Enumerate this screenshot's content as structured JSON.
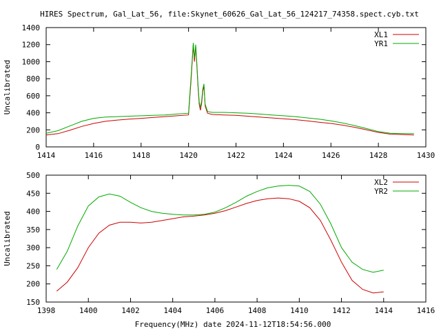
{
  "figure_title": "HIRES Spectrum, Gal_Lat_56, file:Skynet_60626_Gal_Lat_56_124217_74358.spect.cyb.txt",
  "xlabel_bottom": "Frequency(MHz) date 2024-11-12T18:54:56.000",
  "chart_data": [
    {
      "type": "line",
      "title": "",
      "xlabel": "",
      "ylabel": "Uncalibrated",
      "xlim": [
        1414,
        1430
      ],
      "ylim": [
        0,
        1400
      ],
      "xticks": [
        1414,
        1416,
        1418,
        1420,
        1422,
        1424,
        1426,
        1428,
        1430
      ],
      "yticks": [
        0,
        200,
        400,
        600,
        800,
        1000,
        1200,
        1400
      ],
      "legend_position": "top-right",
      "series": [
        {
          "name": "XL1",
          "color": "#cc0000",
          "x": [
            1414.0,
            1414.5,
            1415.0,
            1415.5,
            1416.0,
            1416.5,
            1417.0,
            1417.5,
            1418.0,
            1418.5,
            1419.0,
            1419.5,
            1420.0,
            1420.1,
            1420.2,
            1420.25,
            1420.3,
            1420.35,
            1420.4,
            1420.45,
            1420.5,
            1420.55,
            1420.6,
            1420.65,
            1420.7,
            1420.8,
            1421.0,
            1421.5,
            1422.0,
            1422.5,
            1423.0,
            1423.5,
            1424.0,
            1424.5,
            1425.0,
            1425.5,
            1426.0,
            1426.5,
            1427.0,
            1427.5,
            1428.0,
            1428.5,
            1429.0,
            1429.5
          ],
          "values": [
            140,
            155,
            195,
            240,
            275,
            300,
            315,
            325,
            335,
            345,
            355,
            365,
            375,
            760,
            1200,
            1000,
            1180,
            950,
            700,
            500,
            430,
            510,
            650,
            720,
            480,
            395,
            380,
            375,
            370,
            360,
            350,
            340,
            330,
            320,
            305,
            290,
            275,
            255,
            230,
            200,
            170,
            150,
            145,
            140
          ]
        },
        {
          "name": "YR1",
          "color": "#00aa00",
          "x": [
            1414.0,
            1414.5,
            1415.0,
            1415.5,
            1416.0,
            1416.5,
            1417.0,
            1417.5,
            1418.0,
            1418.5,
            1419.0,
            1419.5,
            1420.0,
            1420.1,
            1420.2,
            1420.25,
            1420.3,
            1420.35,
            1420.4,
            1420.45,
            1420.5,
            1420.55,
            1420.6,
            1420.65,
            1420.7,
            1420.8,
            1421.0,
            1421.5,
            1422.0,
            1422.5,
            1423.0,
            1423.5,
            1424.0,
            1424.5,
            1425.0,
            1425.5,
            1426.0,
            1426.5,
            1427.0,
            1427.5,
            1428.0,
            1428.5,
            1429.0,
            1429.5
          ],
          "values": [
            160,
            190,
            245,
            300,
            335,
            350,
            355,
            360,
            365,
            370,
            375,
            385,
            395,
            800,
            1220,
            1040,
            1200,
            980,
            730,
            530,
            460,
            540,
            680,
            740,
            500,
            415,
            405,
            405,
            400,
            395,
            385,
            375,
            365,
            355,
            340,
            325,
            305,
            280,
            250,
            215,
            180,
            160,
            155,
            155
          ]
        }
      ]
    },
    {
      "type": "line",
      "title": "",
      "xlabel": "Frequency(MHz) date 2024-11-12T18:54:56.000",
      "ylabel": "Uncalibrated",
      "xlim": [
        1398,
        1416
      ],
      "ylim": [
        150,
        500
      ],
      "xticks": [
        1398,
        1400,
        1402,
        1404,
        1406,
        1408,
        1410,
        1412,
        1414,
        1416
      ],
      "yticks": [
        150,
        200,
        250,
        300,
        350,
        400,
        450,
        500
      ],
      "legend_position": "top-right",
      "series": [
        {
          "name": "XL2",
          "color": "#cc0000",
          "x": [
            1398.5,
            1399.0,
            1399.5,
            1400.0,
            1400.5,
            1401.0,
            1401.5,
            1402.0,
            1402.5,
            1403.0,
            1403.5,
            1404.0,
            1404.5,
            1405.0,
            1405.5,
            1406.0,
            1406.5,
            1407.0,
            1407.5,
            1408.0,
            1408.5,
            1409.0,
            1409.5,
            1410.0,
            1410.5,
            1411.0,
            1411.5,
            1412.0,
            1412.5,
            1413.0,
            1413.5,
            1414.0
          ],
          "values": [
            180,
            205,
            245,
            300,
            340,
            362,
            370,
            370,
            368,
            370,
            375,
            380,
            385,
            387,
            390,
            395,
            402,
            412,
            422,
            430,
            435,
            437,
            435,
            428,
            410,
            375,
            320,
            260,
            210,
            185,
            175,
            178
          ]
        },
        {
          "name": "YR2",
          "color": "#00aa00",
          "x": [
            1398.5,
            1399.0,
            1399.5,
            1400.0,
            1400.5,
            1401.0,
            1401.5,
            1402.0,
            1402.5,
            1403.0,
            1403.5,
            1404.0,
            1404.5,
            1405.0,
            1405.5,
            1406.0,
            1406.5,
            1407.0,
            1407.5,
            1408.0,
            1408.5,
            1409.0,
            1409.5,
            1410.0,
            1410.5,
            1411.0,
            1411.5,
            1412.0,
            1412.5,
            1413.0,
            1413.5,
            1414.0
          ],
          "values": [
            240,
            290,
            360,
            415,
            440,
            448,
            442,
            425,
            410,
            400,
            395,
            392,
            390,
            390,
            392,
            398,
            410,
            425,
            442,
            455,
            465,
            470,
            472,
            470,
            455,
            420,
            365,
            300,
            260,
            240,
            232,
            238
          ]
        }
      ]
    }
  ]
}
